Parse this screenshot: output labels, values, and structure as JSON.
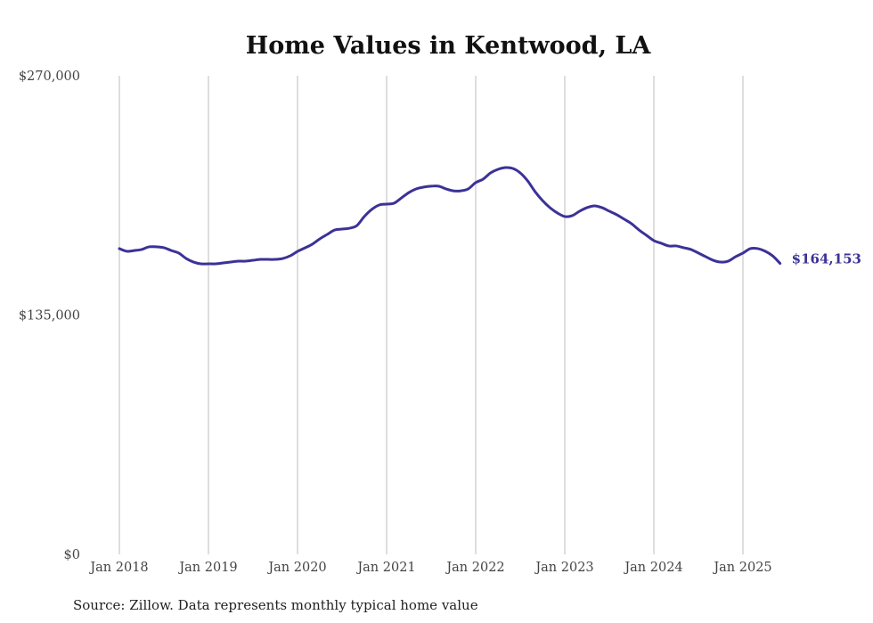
{
  "chart_data": {
    "type": "line",
    "title": "Home Values in Kentwood, LA",
    "xlabel": "",
    "ylabel": "",
    "ylim": [
      0,
      270000
    ],
    "y_ticks": [
      "$0",
      "$135,000",
      "$270,000"
    ],
    "y_tick_values": [
      0,
      135000,
      270000
    ],
    "x_ticks": [
      "Jan 2018",
      "Jan 2019",
      "Jan 2020",
      "Jan 2021",
      "Jan 2022",
      "Jan 2023",
      "Jan 2024",
      "Jan 2025"
    ],
    "x_start": "Jan 2018",
    "x_end": "Jun 2025",
    "grid": "vertical",
    "series": [
      {
        "name": "Typical home value",
        "color": "#3b3297",
        "frequency": "monthly",
        "values": [
          172500,
          171000,
          171400,
          172000,
          173500,
          173500,
          173000,
          171400,
          170000,
          166900,
          164900,
          163900,
          163900,
          163900,
          164400,
          164900,
          165400,
          165400,
          165900,
          166400,
          166400,
          166400,
          166900,
          168400,
          170900,
          172900,
          175000,
          178000,
          180500,
          183000,
          183500,
          184000,
          185500,
          190600,
          194600,
          197100,
          197600,
          198100,
          201100,
          204100,
          206200,
          207200,
          207700,
          207700,
          206200,
          205100,
          205100,
          206200,
          209700,
          211700,
          215200,
          217200,
          218200,
          217700,
          215200,
          210700,
          204600,
          199600,
          195600,
          192600,
          190600,
          191100,
          193600,
          195600,
          196600,
          195600,
          193600,
          191600,
          189100,
          186500,
          183000,
          180000,
          177000,
          175500,
          174000,
          174000,
          173000,
          172000,
          170000,
          167900,
          165900,
          164900,
          165400,
          167900,
          170000,
          172500,
          172500,
          171000,
          168400,
          164153
        ]
      }
    ],
    "end_label": "$164,153",
    "source": "Source: Zillow. Data represents monthly typical home value"
  }
}
